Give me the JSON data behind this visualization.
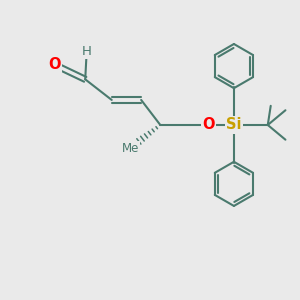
{
  "bg_color": "#eaeaea",
  "bond_color": "#4a7a6e",
  "bond_width": 1.5,
  "atom_O_color": "#ff0000",
  "atom_Si_color": "#c8a000",
  "font_size_atom": 9.5,
  "figsize": [
    3.0,
    3.0
  ],
  "dpi": 100,
  "xlim": [
    0,
    10
  ],
  "ylim": [
    0,
    10
  ]
}
